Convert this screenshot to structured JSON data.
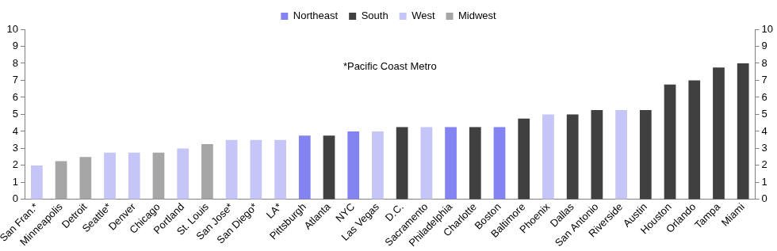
{
  "chart_data": {
    "type": "bar",
    "categories": [
      "San Fran.*",
      "Minneapolis",
      "Detroit",
      "Seattle*",
      "Denver",
      "Chicago",
      "Portland",
      "St. Louis",
      "San Jose*",
      "San Diego*",
      "LA*",
      "Pittsburgh",
      "Atlanta",
      "NYC",
      "Las Vegas",
      "D.C.",
      "Sacramento",
      "Philadelphia",
      "Charlotte",
      "Boston",
      "Baltimore",
      "Phoenix",
      "Dallas",
      "San Antonio",
      "Riverside",
      "Austin",
      "Houston",
      "Orlando",
      "Tampa",
      "Miami"
    ],
    "series": [
      {
        "name": "Northeast",
        "color": "#8383f2",
        "values": [
          null,
          null,
          null,
          null,
          null,
          null,
          null,
          null,
          null,
          null,
          null,
          3.75,
          null,
          4,
          null,
          null,
          null,
          4.25,
          null,
          4.25,
          null,
          null,
          null,
          null,
          null,
          null,
          null,
          null,
          null,
          null
        ]
      },
      {
        "name": "South",
        "color": "#404040",
        "values": [
          null,
          null,
          null,
          null,
          null,
          null,
          null,
          null,
          null,
          null,
          null,
          null,
          3.75,
          null,
          null,
          4.25,
          null,
          null,
          4.25,
          null,
          4.75,
          null,
          5,
          5.25,
          null,
          5.25,
          6.75,
          7,
          7.75,
          8
        ]
      },
      {
        "name": "West",
        "color": "#c5c5f7",
        "values": [
          2,
          null,
          null,
          2.75,
          2.75,
          null,
          3,
          null,
          3.5,
          3.5,
          3.5,
          null,
          null,
          null,
          4,
          null,
          4.25,
          null,
          null,
          null,
          null,
          5,
          null,
          null,
          5.25,
          null,
          null,
          null,
          null,
          null
        ]
      },
      {
        "name": "Midwest",
        "color": "#a6a6a6",
        "values": [
          null,
          2.25,
          2.5,
          null,
          null,
          2.75,
          null,
          3.25,
          null,
          null,
          null,
          null,
          null,
          null,
          null,
          null,
          null,
          null,
          null,
          null,
          null,
          null,
          null,
          null,
          null,
          null,
          null,
          null,
          null,
          null
        ]
      }
    ],
    "annotations": [
      "*Pacific Coast Metro"
    ],
    "ylim": [
      0,
      10
    ],
    "yticks": [
      0,
      1,
      2,
      3,
      4,
      5,
      6,
      7,
      8,
      9,
      10
    ],
    "y2lim": [
      0,
      10
    ],
    "y2ticks": [
      0,
      1,
      2,
      3,
      4,
      5,
      6,
      7,
      8,
      9,
      10
    ],
    "grid": false,
    "legend": "top"
  }
}
